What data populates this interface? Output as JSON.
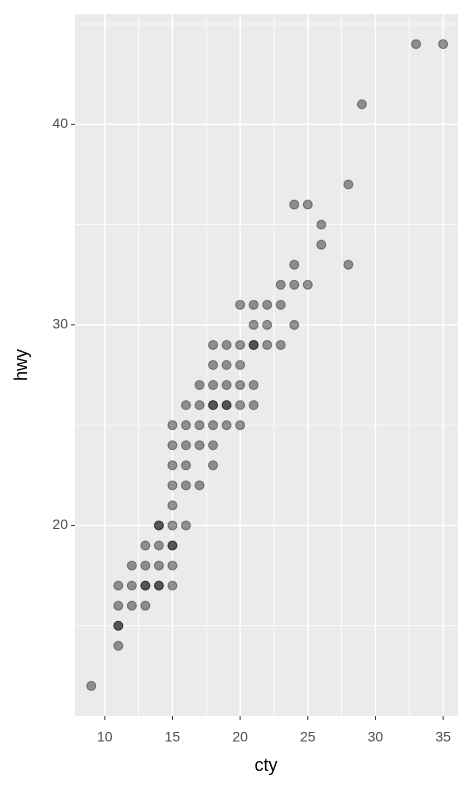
{
  "chart_data": {
    "type": "scatter",
    "xlabel": "cty",
    "ylabel": "hwy",
    "x": [
      9,
      11,
      11,
      11,
      11,
      11,
      12,
      12,
      12,
      13,
      13,
      13,
      13,
      13,
      14,
      14,
      14,
      14,
      14,
      14,
      15,
      15,
      15,
      15,
      15,
      15,
      15,
      15,
      15,
      15,
      16,
      16,
      16,
      16,
      16,
      16,
      17,
      17,
      17,
      17,
      17,
      18,
      18,
      18,
      18,
      18,
      18,
      18,
      18,
      19,
      19,
      19,
      19,
      19,
      19,
      20,
      20,
      20,
      20,
      20,
      20,
      21,
      21,
      21,
      21,
      21,
      21,
      22,
      22,
      22,
      23,
      23,
      23,
      24,
      24,
      24,
      24,
      25,
      25,
      26,
      26,
      28,
      28,
      29,
      33,
      35
    ],
    "values": [
      12,
      14,
      15,
      15,
      16,
      17,
      16,
      17,
      18,
      16,
      17,
      17,
      18,
      19,
      17,
      17,
      18,
      19,
      20,
      20,
      17,
      18,
      19,
      19,
      20,
      21,
      22,
      23,
      24,
      25,
      20,
      22,
      23,
      24,
      25,
      26,
      22,
      24,
      25,
      26,
      27,
      23,
      24,
      25,
      26,
      26,
      27,
      28,
      29,
      25,
      26,
      26,
      27,
      28,
      29,
      25,
      26,
      27,
      28,
      29,
      31,
      26,
      27,
      29,
      29,
      30,
      31,
      29,
      30,
      31,
      29,
      31,
      32,
      30,
      32,
      33,
      36,
      32,
      36,
      34,
      35,
      33,
      37,
      41,
      44,
      44
    ],
    "color": "#000000",
    "alpha": 0.4,
    "xlim": [
      7.8,
      36.1
    ],
    "ylim": [
      10.5,
      45.5
    ],
    "xticks": [
      10,
      15,
      20,
      25,
      30,
      35
    ],
    "yticks": [
      20,
      30,
      40
    ],
    "grid": true
  }
}
